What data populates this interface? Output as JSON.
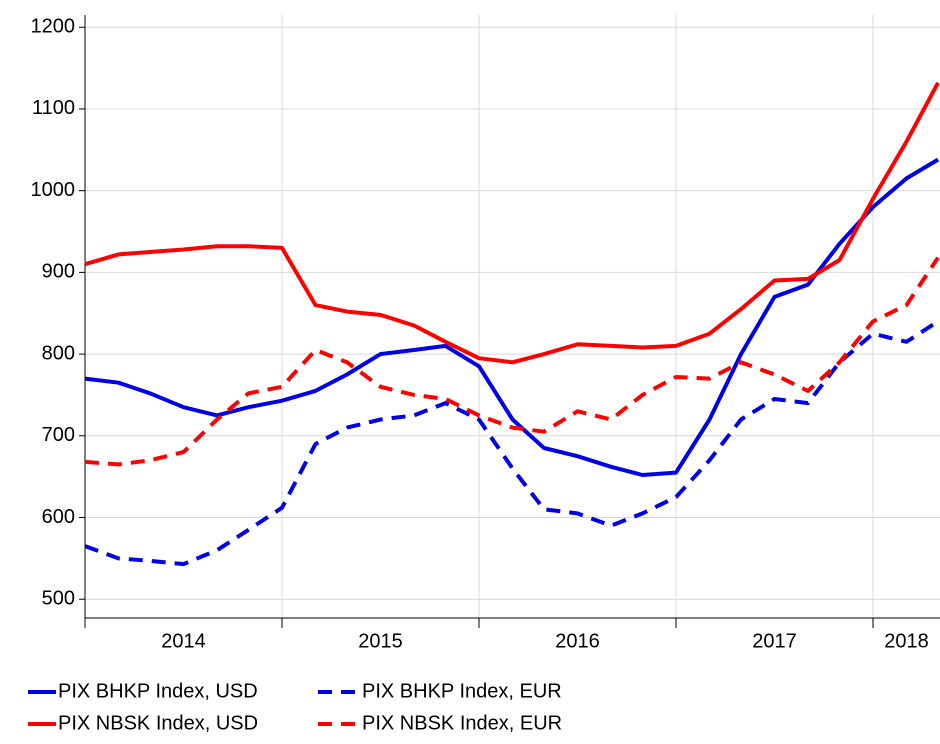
{
  "chart_data": {
    "type": "line",
    "x": [
      2014.0,
      2014.17,
      2014.33,
      2014.5,
      2014.67,
      2014.83,
      2015.0,
      2015.17,
      2015.33,
      2015.5,
      2015.67,
      2015.83,
      2016.0,
      2016.17,
      2016.33,
      2016.5,
      2016.67,
      2016.83,
      2017.0,
      2017.17,
      2017.33,
      2017.5,
      2017.67,
      2017.83,
      2018.0,
      2018.17,
      2018.33
    ],
    "series": [
      {
        "name": "PIX BHKP Index, USD",
        "color": "#0000e6",
        "dash": false,
        "values": [
          770,
          765,
          752,
          735,
          725,
          735,
          743,
          755,
          775,
          800,
          805,
          810,
          785,
          720,
          685,
          675,
          662,
          652,
          655,
          720,
          800,
          870,
          885,
          935,
          980,
          1015,
          1038
        ]
      },
      {
        "name": "PIX BHKP Index, EUR",
        "color": "#0000e6",
        "dash": true,
        "values": [
          565,
          550,
          547,
          543,
          560,
          585,
          612,
          690,
          710,
          720,
          725,
          740,
          720,
          660,
          610,
          605,
          590,
          605,
          625,
          670,
          720,
          745,
          740,
          790,
          825,
          815,
          840
        ]
      },
      {
        "name": "PIX NBSK Index, USD",
        "color": "#ff0000",
        "dash": false,
        "values": [
          910,
          922,
          925,
          928,
          932,
          932,
          930,
          860,
          852,
          848,
          835,
          815,
          795,
          790,
          800,
          812,
          810,
          808,
          810,
          825,
          855,
          890,
          892,
          915,
          990,
          1060,
          1132
        ]
      },
      {
        "name": "PIX NBSK Index, EUR",
        "color": "#ff0000",
        "dash": true,
        "values": [
          668,
          665,
          670,
          680,
          720,
          752,
          760,
          805,
          790,
          760,
          750,
          745,
          725,
          710,
          705,
          730,
          720,
          750,
          772,
          770,
          790,
          775,
          755,
          790,
          840,
          860,
          918
        ]
      }
    ],
    "xlim": [
      2014,
      2018.34
    ],
    "xticks": [
      2014,
      2015,
      2016,
      2017,
      2018
    ],
    "ylim": [
      477,
      1215
    ],
    "yticks": [
      500,
      600,
      700,
      800,
      900,
      1000,
      1100,
      1200
    ],
    "grid": true
  }
}
